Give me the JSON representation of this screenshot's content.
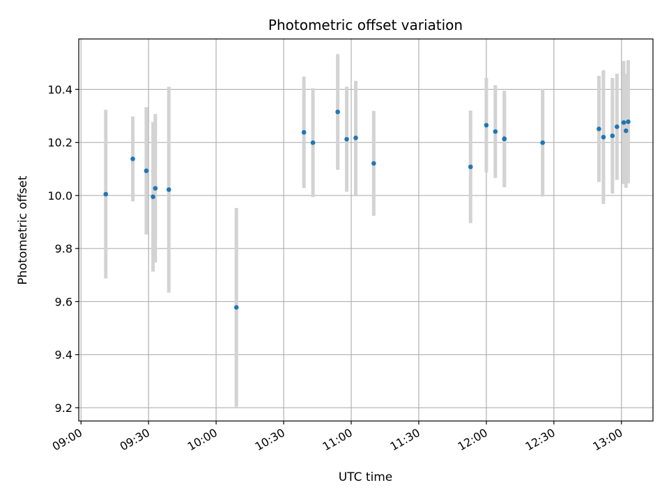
{
  "chart_data": {
    "type": "scatter",
    "title": "Photometric offset variation",
    "xlabel": "UTC time",
    "ylabel": "Photometric offset",
    "x_ticks": [
      "09:00",
      "09:30",
      "10:00",
      "10:30",
      "11:00",
      "11:30",
      "12:00",
      "12:30",
      "13:00"
    ],
    "y_ticks": [
      "9.2",
      "9.4",
      "9.6",
      "9.8",
      "10.0",
      "10.2",
      "10.4"
    ],
    "xlim": [
      "08:59",
      "13:14"
    ],
    "ylim": [
      9.15,
      10.59
    ],
    "grid": true,
    "colors": {
      "point": "#1f77b4",
      "errorbar": "#d3d3d3",
      "grid": "#b0b0b0"
    },
    "points": [
      {
        "x": "09:11",
        "y": 10.005,
        "err": 0.318
      },
      {
        "x": "09:23",
        "y": 10.138,
        "err": 0.16
      },
      {
        "x": "09:29",
        "y": 10.093,
        "err": 0.24
      },
      {
        "x": "09:32",
        "y": 9.995,
        "err": 0.282
      },
      {
        "x": "09:33",
        "y": 10.027,
        "err": 0.28
      },
      {
        "x": "09:39",
        "y": 10.022,
        "err": 0.388
      },
      {
        "x": "10:09",
        "y": 9.578,
        "err": 0.375
      },
      {
        "x": "10:39",
        "y": 10.238,
        "err": 0.21
      },
      {
        "x": "10:43",
        "y": 10.199,
        "err": 0.205
      },
      {
        "x": "10:54",
        "y": 10.315,
        "err": 0.218
      },
      {
        "x": "10:58",
        "y": 10.212,
        "err": 0.198
      },
      {
        "x": "11:02",
        "y": 10.217,
        "err": 0.215
      },
      {
        "x": "11:10",
        "y": 10.121,
        "err": 0.198
      },
      {
        "x": "11:53",
        "y": 10.108,
        "err": 0.212
      },
      {
        "x": "12:00",
        "y": 10.265,
        "err": 0.178
      },
      {
        "x": "12:04",
        "y": 10.241,
        "err": 0.175
      },
      {
        "x": "12:08",
        "y": 10.213,
        "err": 0.182
      },
      {
        "x": "12:08",
        "y": 10.214,
        "err": 0.172
      },
      {
        "x": "12:25",
        "y": 10.199,
        "err": 0.203
      },
      {
        "x": "12:50",
        "y": 10.251,
        "err": 0.2
      },
      {
        "x": "12:52",
        "y": 10.22,
        "err": 0.252
      },
      {
        "x": "12:56",
        "y": 10.225,
        "err": 0.218
      },
      {
        "x": "12:58",
        "y": 10.259,
        "err": 0.2
      },
      {
        "x": "13:01",
        "y": 10.275,
        "err": 0.232
      },
      {
        "x": "13:02",
        "y": 10.244,
        "err": 0.215
      },
      {
        "x": "13:03",
        "y": 10.278,
        "err": 0.232
      }
    ]
  }
}
